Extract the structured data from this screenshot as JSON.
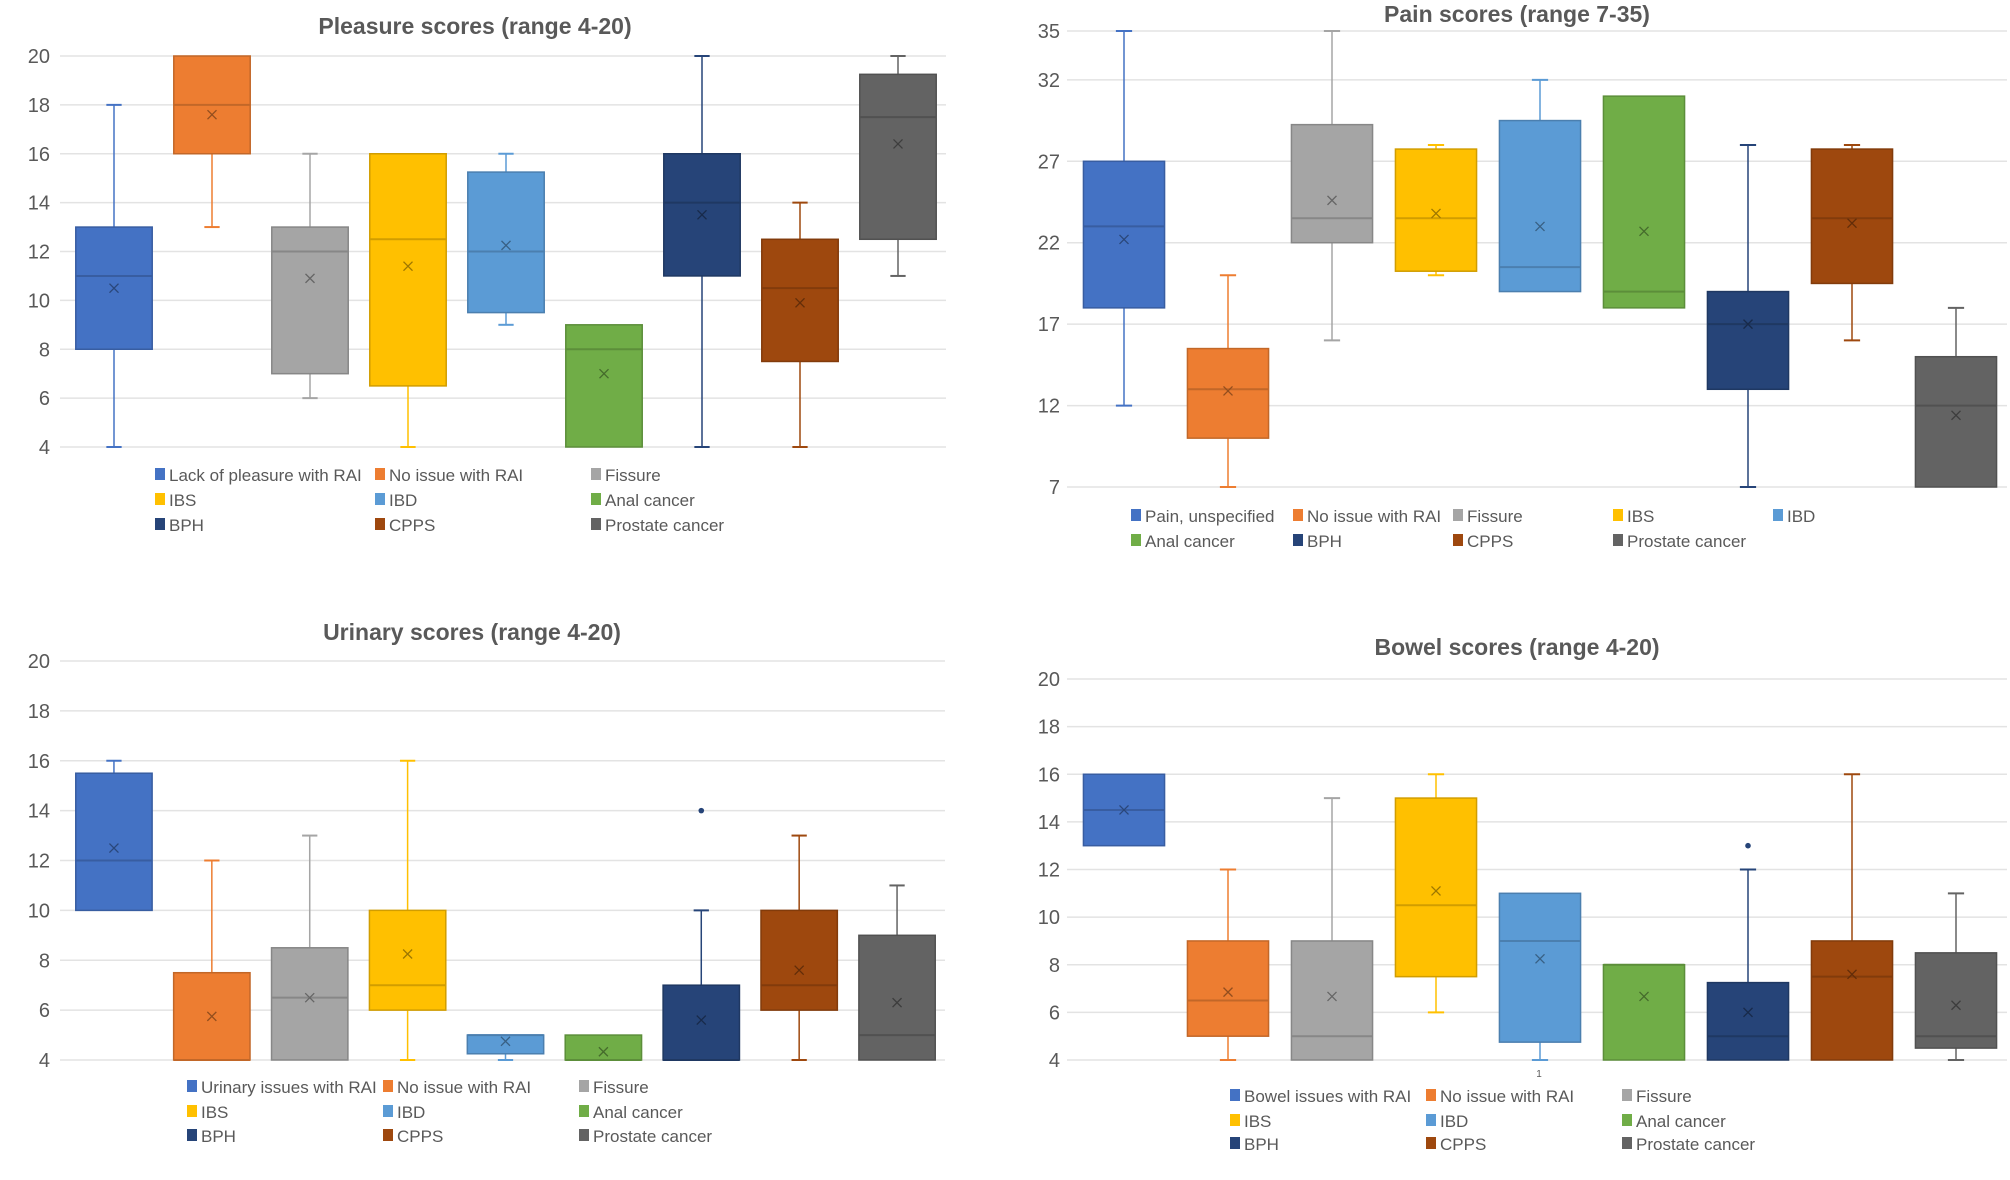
{
  "colors": {
    "blue": "#4472C4",
    "orange": "#ED7D31",
    "gray": "#A5A5A5",
    "yellow": "#FFC000",
    "lightblue": "#5B9BD5",
    "green": "#70AD47",
    "darkblue": "#264478",
    "brown": "#9E480E",
    "darkgray": "#636363"
  },
  "chart_data": [
    {
      "id": "pleasure",
      "type": "box",
      "title": "Pleasure scores (range 4-20)",
      "xlabel": "",
      "ylabel": "",
      "ylim": [
        4,
        20
      ],
      "yticks": [
        4,
        6,
        8,
        10,
        12,
        14,
        16,
        18,
        20
      ],
      "grid": true,
      "legend_position": "bottom",
      "category_label": "",
      "series": [
        {
          "name": "Lack of pleasure with RAI",
          "color": "blue",
          "min": 4,
          "q1": 8,
          "median": 11,
          "q3": 13,
          "max": 18,
          "mean": 10.5,
          "outliers": []
        },
        {
          "name": "No issue with RAI",
          "color": "orange",
          "min": 13,
          "q1": 16,
          "median": 18,
          "q3": 20,
          "max": 20,
          "mean": 17.6,
          "outliers": []
        },
        {
          "name": "Fissure",
          "color": "gray",
          "min": 6,
          "q1": 7,
          "median": 12,
          "q3": 13,
          "max": 16,
          "mean": 10.9,
          "outliers": []
        },
        {
          "name": "IBS",
          "color": "yellow",
          "min": 4,
          "q1": 6.5,
          "median": 12.5,
          "q3": 16,
          "max": 16,
          "mean": 11.4,
          "outliers": []
        },
        {
          "name": "IBD",
          "color": "lightblue",
          "min": 9,
          "q1": 9.5,
          "median": 12,
          "q3": 15.25,
          "max": 16,
          "mean": 12.25,
          "outliers": []
        },
        {
          "name": "Anal cancer",
          "color": "green",
          "min": 4,
          "q1": 4,
          "median": 8,
          "q3": 9,
          "max": 9,
          "mean": 7,
          "outliers": []
        },
        {
          "name": "BPH",
          "color": "darkblue",
          "min": 4,
          "q1": 11,
          "median": 14,
          "q3": 16,
          "max": 20,
          "mean": 13.5,
          "outliers": []
        },
        {
          "name": "CPPS",
          "color": "brown",
          "min": 4,
          "q1": 7.5,
          "median": 10.5,
          "q3": 12.5,
          "max": 14,
          "mean": 9.9,
          "outliers": []
        },
        {
          "name": "Prostate cancer",
          "color": "darkgray",
          "min": 11,
          "q1": 12.5,
          "median": 17.5,
          "q3": 19.25,
          "max": 20,
          "mean": 16.4,
          "outliers": []
        }
      ]
    },
    {
      "id": "pain",
      "type": "box",
      "title": "Pain scores (range 7-35)",
      "xlabel": "",
      "ylabel": "",
      "ylim": [
        7,
        35
      ],
      "yticks": [
        7,
        12,
        17,
        22,
        27,
        32,
        35
      ],
      "grid": true,
      "legend_position": "bottom",
      "category_label": "",
      "series": [
        {
          "name": "Pain, unspecified",
          "color": "blue",
          "min": 12,
          "q1": 18,
          "median": 23,
          "q3": 27,
          "max": 35,
          "mean": 22.2,
          "outliers": []
        },
        {
          "name": "No issue with RAI",
          "color": "orange",
          "min": 7,
          "q1": 10,
          "median": 13,
          "q3": 15.5,
          "max": 20,
          "mean": 12.9,
          "outliers": []
        },
        {
          "name": "Fissure",
          "color": "gray",
          "min": 16,
          "q1": 22,
          "median": 23.5,
          "q3": 29.25,
          "max": 35,
          "mean": 24.6,
          "outliers": []
        },
        {
          "name": "IBS",
          "color": "yellow",
          "min": 20,
          "q1": 20.25,
          "median": 23.5,
          "q3": 27.75,
          "max": 28,
          "mean": 23.8,
          "outliers": []
        },
        {
          "name": "IBD",
          "color": "lightblue",
          "min": 19,
          "q1": 19,
          "median": 20.5,
          "q3": 29.5,
          "max": 32,
          "mean": 23,
          "outliers": []
        },
        {
          "name": "Anal cancer",
          "color": "green",
          "min": 18,
          "q1": 18,
          "median": 19,
          "q3": 31,
          "max": 31,
          "mean": 22.7,
          "outliers": []
        },
        {
          "name": "BPH",
          "color": "darkblue",
          "min": 7,
          "q1": 13,
          "median": 17,
          "q3": 19,
          "max": 28,
          "mean": 17,
          "outliers": []
        },
        {
          "name": "CPPS",
          "color": "brown",
          "min": 16,
          "q1": 19.5,
          "median": 23.5,
          "q3": 27.75,
          "max": 28,
          "mean": 23.2,
          "outliers": []
        },
        {
          "name": "Prostate cancer",
          "color": "darkgray",
          "min": 7,
          "q1": 7,
          "median": 12,
          "q3": 15,
          "max": 18,
          "mean": 11.4,
          "outliers": []
        }
      ]
    },
    {
      "id": "urinary",
      "type": "box",
      "title": "Urinary scores (range 4-20)",
      "xlabel": "",
      "ylabel": "",
      "ylim": [
        4,
        20
      ],
      "yticks": [
        4,
        6,
        8,
        10,
        12,
        14,
        16,
        18,
        20
      ],
      "grid": true,
      "legend_position": "bottom",
      "category_label": "",
      "series": [
        {
          "name": "Urinary issues with RAI",
          "color": "blue",
          "min": 10,
          "q1": 10,
          "median": 12,
          "q3": 15.5,
          "max": 16,
          "mean": 12.5,
          "outliers": []
        },
        {
          "name": "No issue with RAI",
          "color": "orange",
          "min": 4,
          "q1": 4,
          "median": 4,
          "q3": 7.5,
          "max": 12,
          "mean": 5.75,
          "outliers": []
        },
        {
          "name": "Fissure",
          "color": "gray",
          "min": 4,
          "q1": 4,
          "median": 6.5,
          "q3": 8.5,
          "max": 13,
          "mean": 6.5,
          "outliers": []
        },
        {
          "name": "IBS",
          "color": "yellow",
          "min": 4,
          "q1": 6,
          "median": 7,
          "q3": 10,
          "max": 16,
          "mean": 8.25,
          "outliers": []
        },
        {
          "name": "IBD",
          "color": "lightblue",
          "min": 4,
          "q1": 4.25,
          "median": 5,
          "q3": 5,
          "max": 5,
          "mean": 4.75,
          "outliers": []
        },
        {
          "name": "Anal cancer",
          "color": "green",
          "min": 4,
          "q1": 4,
          "median": 4,
          "q3": 5,
          "max": 5,
          "mean": 4.33,
          "outliers": []
        },
        {
          "name": "BPH",
          "color": "darkblue",
          "min": 4,
          "q1": 4,
          "median": 4,
          "q3": 7,
          "max": 10,
          "mean": 5.6,
          "outliers": [
            14
          ]
        },
        {
          "name": "CPPS",
          "color": "brown",
          "min": 4,
          "q1": 6,
          "median": 7,
          "q3": 10,
          "max": 13,
          "mean": 7.6,
          "outliers": []
        },
        {
          "name": "Prostate cancer",
          "color": "darkgray",
          "min": 4,
          "q1": 4,
          "median": 5,
          "q3": 9,
          "max": 11,
          "mean": 6.3,
          "outliers": []
        }
      ]
    },
    {
      "id": "bowel",
      "type": "box",
      "title": "Bowel scores (range 4-20)",
      "xlabel": "",
      "ylabel": "",
      "ylim": [
        4,
        20
      ],
      "yticks": [
        4,
        6,
        8,
        10,
        12,
        14,
        16,
        18,
        20
      ],
      "grid": true,
      "legend_position": "bottom",
      "category_label": "1",
      "series": [
        {
          "name": "Bowel issues with RAI",
          "color": "blue",
          "min": 13,
          "q1": 13,
          "median": 14.5,
          "q3": 16,
          "max": 16,
          "mean": 14.5,
          "outliers": []
        },
        {
          "name": "No issue with RAI",
          "color": "orange",
          "min": 4,
          "q1": 5,
          "median": 6.5,
          "q3": 9,
          "max": 12,
          "mean": 6.85,
          "outliers": []
        },
        {
          "name": "Fissure",
          "color": "gray",
          "min": 4,
          "q1": 4,
          "median": 5,
          "q3": 9,
          "max": 15,
          "mean": 6.67,
          "outliers": []
        },
        {
          "name": "IBS",
          "color": "yellow",
          "min": 6,
          "q1": 7.5,
          "median": 10.5,
          "q3": 15,
          "max": 16,
          "mean": 11.1,
          "outliers": []
        },
        {
          "name": "IBD",
          "color": "lightblue",
          "min": 4,
          "q1": 4.75,
          "median": 9,
          "q3": 11,
          "max": 11,
          "mean": 8.25,
          "outliers": []
        },
        {
          "name": "Anal cancer",
          "color": "green",
          "min": 4,
          "q1": 4,
          "median": 8,
          "q3": 8,
          "max": 8,
          "mean": 6.67,
          "outliers": []
        },
        {
          "name": "BPH",
          "color": "darkblue",
          "min": 4,
          "q1": 4,
          "median": 5,
          "q3": 7.25,
          "max": 12,
          "mean": 6,
          "outliers": [
            13
          ]
        },
        {
          "name": "CPPS",
          "color": "brown",
          "min": 4,
          "q1": 4,
          "median": 7.5,
          "q3": 9,
          "max": 16,
          "mean": 7.6,
          "outliers": []
        },
        {
          "name": "Prostate cancer",
          "color": "darkgray",
          "min": 4,
          "q1": 4.5,
          "median": 5,
          "q3": 8.5,
          "max": 11,
          "mean": 6.3,
          "outliers": []
        }
      ]
    }
  ]
}
